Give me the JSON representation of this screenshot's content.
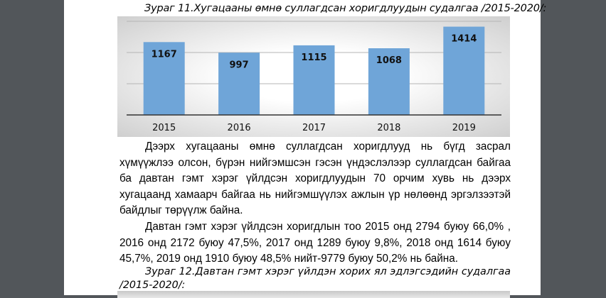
{
  "figure11": {
    "caption": "Зураг 11.Хугацааны өмнө суллагдсан хоригдлуудын судалгаа /2015-2020/:"
  },
  "chart_data": {
    "type": "bar",
    "categories": [
      "2015",
      "2016",
      "2017",
      "2018",
      "2019"
    ],
    "values": [
      1167,
      997,
      1115,
      1068,
      1414
    ],
    "ylim": [
      0,
      1500
    ],
    "grid": true,
    "bar_color": "#6fa5d8",
    "data_labels": true
  },
  "paragraph1": "Дээрх хугацааны өмнө суллагдсан хоригдлууд нь бүгд засрал хүмүүжлээ олсон, бүрэн нийгэмшсэн гэсэн үндэслэлээр суллагдсан байгаа ба давтан гэмт хэрэг үйлдсэн хоригдлуудын 70 орчим хувь нь дээрх хугацаанд хамаарч байгаа нь нийгэмшүүлэх ажлын үр нөлөөнд эргэлзээтэй байдлыг төрүүлж байна.",
  "paragraph2": "Давтан гэмт хэрэг үйлдсэн хоригдлын тоо 2015 онд 2794 буюу 66,0% , 2016 онд 2172 буюу 47,5%, 2017 онд 1289 буюу 9,8%, 2018 онд 1614 буюу 45,7%, 2019 онд 1910 буюу 48,5% нийт-9779 буюу 50,2% нь байна.",
  "figure12": {
    "caption": "Зураг 12.Давтан гэмт хэрэг үйлдэн хорих ял эдлэгсэдийн судалгаа /2015-2020/:"
  }
}
